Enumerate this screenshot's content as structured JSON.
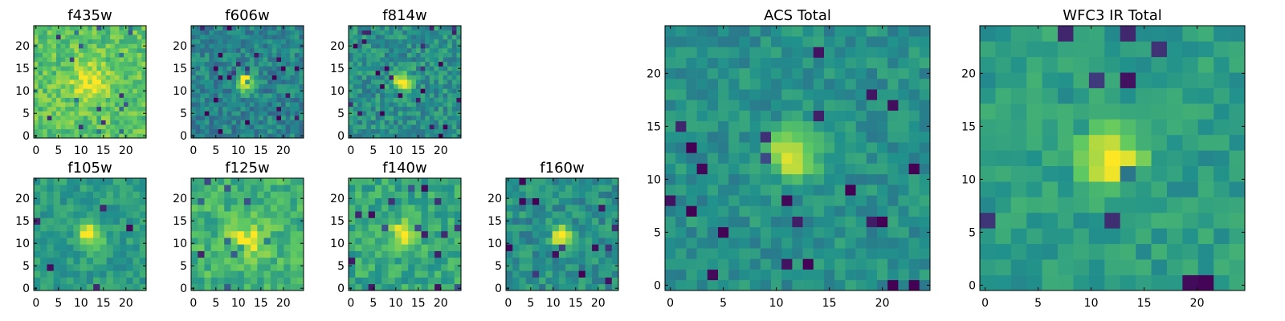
{
  "figure": {
    "background": "#ffffff",
    "frame_color": "#000000"
  },
  "colormap": {
    "name": "viridis",
    "stops": [
      "#440154",
      "#3b528b",
      "#21918c",
      "#5ec962",
      "#fde725"
    ]
  },
  "chart_data": [
    {
      "type": "heatmap",
      "title": "f435w",
      "grid": false,
      "xlim": [
        0,
        24
      ],
      "ylim": [
        0,
        24
      ],
      "xticks": [
        0,
        5,
        10,
        15,
        20
      ],
      "yticks": [
        0,
        5,
        10,
        15,
        20
      ],
      "pixels": 25,
      "source": {
        "cx": 12,
        "cy": 12,
        "sigma": 3.0,
        "amp": 0.25
      },
      "background_level": 0.72,
      "noise": 0.14,
      "seed": 11
    },
    {
      "type": "heatmap",
      "title": "f606w",
      "grid": false,
      "xlim": [
        0,
        24
      ],
      "ylim": [
        0,
        24
      ],
      "xticks": [
        0,
        5,
        10,
        15,
        20
      ],
      "yticks": [
        0,
        5,
        10,
        15,
        20
      ],
      "pixels": 25,
      "source": {
        "cx": 11.5,
        "cy": 12,
        "sigma": 1.4,
        "amp": 0.6
      },
      "background_level": 0.45,
      "noise": 0.14,
      "seed": 23
    },
    {
      "type": "heatmap",
      "title": "f814w",
      "grid": false,
      "xlim": [
        0,
        24
      ],
      "ylim": [
        0,
        24
      ],
      "xticks": [
        0,
        5,
        10,
        15,
        20
      ],
      "yticks": [
        0,
        5,
        10,
        15,
        20
      ],
      "pixels": 25,
      "source": {
        "cx": 11.5,
        "cy": 12,
        "sigma": 1.5,
        "amp": 0.55
      },
      "background_level": 0.5,
      "noise": 0.14,
      "seed": 37
    },
    {
      "type": "heatmap",
      "title": "f105w",
      "grid": false,
      "xlim": [
        0,
        24
      ],
      "ylim": [
        0,
        24
      ],
      "xticks": [
        0,
        5,
        10,
        15,
        20
      ],
      "yticks": [
        0,
        5,
        10,
        15,
        20
      ],
      "pixels": 17,
      "source": {
        "cx": 12,
        "cy": 12,
        "sigma": 2.0,
        "amp": 0.45
      },
      "background_level": 0.55,
      "noise": 0.1,
      "seed": 41
    },
    {
      "type": "heatmap",
      "title": "f125w",
      "grid": false,
      "xlim": [
        0,
        24
      ],
      "ylim": [
        0,
        24
      ],
      "xticks": [
        0,
        5,
        10,
        15,
        20
      ],
      "yticks": [
        0,
        5,
        10,
        15,
        20
      ],
      "pixels": 17,
      "source": {
        "cx": 12,
        "cy": 11,
        "sigma": 3.0,
        "amp": 0.3
      },
      "background_level": 0.65,
      "noise": 0.13,
      "seed": 53
    },
    {
      "type": "heatmap",
      "title": "f140w",
      "grid": false,
      "xlim": [
        0,
        24
      ],
      "ylim": [
        0,
        24
      ],
      "xticks": [
        0,
        5,
        10,
        15,
        20
      ],
      "yticks": [
        0,
        5,
        10,
        15,
        20
      ],
      "pixels": 17,
      "source": {
        "cx": 12,
        "cy": 12,
        "sigma": 2.4,
        "amp": 0.35
      },
      "background_level": 0.6,
      "noise": 0.13,
      "seed": 67
    },
    {
      "type": "heatmap",
      "title": "f160w",
      "grid": false,
      "xlim": [
        0,
        24
      ],
      "ylim": [
        0,
        24
      ],
      "xticks": [
        0,
        5,
        10,
        15,
        20
      ],
      "yticks": [
        0,
        5,
        10,
        15,
        20
      ],
      "pixels": 17,
      "source": {
        "cx": 12,
        "cy": 11.5,
        "sigma": 1.6,
        "amp": 0.55
      },
      "background_level": 0.5,
      "noise": 0.13,
      "seed": 71
    },
    {
      "type": "heatmap",
      "title": "ACS Total",
      "grid": false,
      "xlim": [
        0,
        24
      ],
      "ylim": [
        0,
        24
      ],
      "xticks": [
        0,
        5,
        10,
        15,
        20
      ],
      "yticks": [
        0,
        5,
        10,
        15,
        20
      ],
      "pixels": 25,
      "source": {
        "cx": 11.5,
        "cy": 12.5,
        "sigma": 1.6,
        "amp": 0.5
      },
      "background_level": 0.5,
      "noise": 0.1,
      "seed": 83
    },
    {
      "type": "heatmap",
      "title": "WFC3 IR Total",
      "grid": false,
      "xlim": [
        0,
        24
      ],
      "ylim": [
        0,
        24
      ],
      "xticks": [
        0,
        5,
        10,
        15,
        20
      ],
      "yticks": [
        0,
        5,
        10,
        15,
        20
      ],
      "pixels": 17,
      "source": {
        "cx": 12,
        "cy": 12,
        "sigma": 2.0,
        "amp": 0.45
      },
      "background_level": 0.55,
      "noise": 0.09,
      "seed": 97
    }
  ]
}
